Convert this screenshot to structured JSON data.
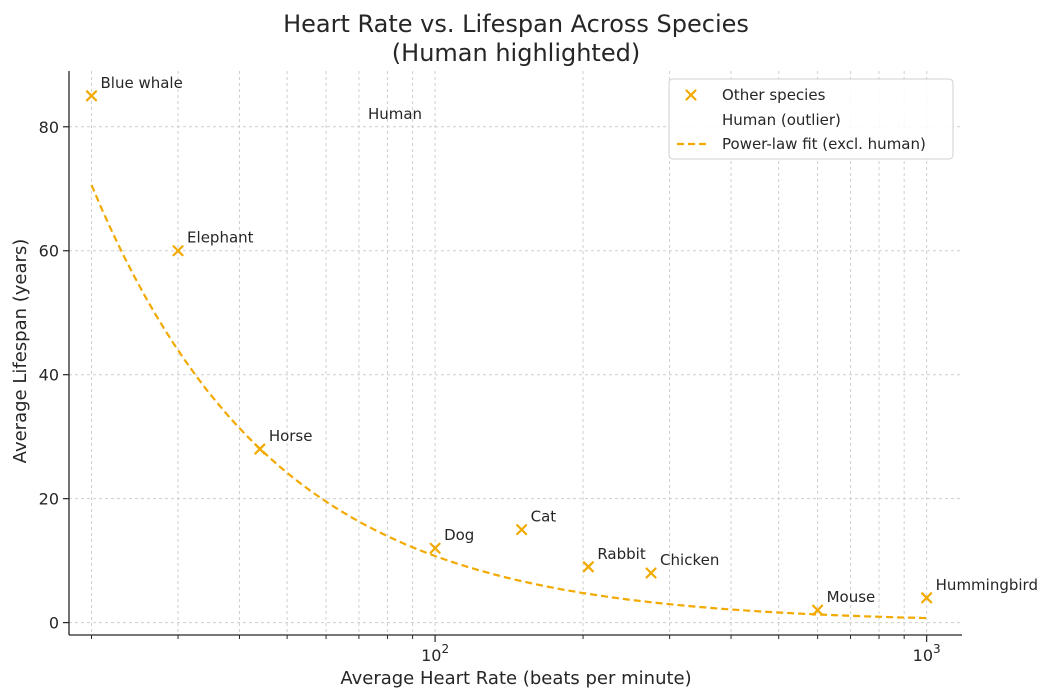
{
  "colors": {
    "accent": "#F2A900",
    "axis": "#262626",
    "grid": "#cfcfcf",
    "background": "#ffffff"
  },
  "chart_data": {
    "type": "scatter",
    "title_lines": [
      "Heart Rate vs. Lifespan Across Species",
      "(Human highlighted)"
    ],
    "xlabel": "Average Heart Rate (beats per minute)",
    "ylabel": "Average Lifespan (years)",
    "xscale": "log",
    "xlim": [
      18,
      1180
    ],
    "ylim": [
      -2,
      89
    ],
    "x_major_ticks": [
      {
        "value": 100,
        "base": "10",
        "exp": "2"
      },
      {
        "value": 1000,
        "base": "10",
        "exp": "3"
      }
    ],
    "x_minor_ticks": [
      20,
      30,
      40,
      50,
      60,
      70,
      80,
      90,
      200,
      300,
      400,
      500,
      600,
      700,
      800,
      900
    ],
    "y_ticks": [
      0,
      20,
      40,
      60,
      80
    ],
    "grid": true,
    "series": [
      {
        "name": "Other species",
        "marker": "x",
        "points": [
          {
            "label": "Blue whale",
            "x": 20,
            "y": 85
          },
          {
            "label": "Elephant",
            "x": 30,
            "y": 60
          },
          {
            "label": "Horse",
            "x": 44,
            "y": 28
          },
          {
            "label": "Dog",
            "x": 100,
            "y": 12
          },
          {
            "label": "Cat",
            "x": 150,
            "y": 15
          },
          {
            "label": "Rabbit",
            "x": 205,
            "y": 9
          },
          {
            "label": "Chicken",
            "x": 275,
            "y": 8
          },
          {
            "label": "Mouse",
            "x": 600,
            "y": 2
          },
          {
            "label": "Hummingbird",
            "x": 1000,
            "y": 4
          }
        ]
      },
      {
        "name": "Human (outlier)",
        "marker": "none",
        "points": [
          {
            "label": "Human",
            "x": 70,
            "y": 80
          }
        ]
      },
      {
        "name": "Power-law fit (excl. human)",
        "line": "dashed",
        "fit": {
          "a": 2350,
          "b": -1.17,
          "x_from": 20,
          "x_to": 1000
        }
      }
    ],
    "legend": {
      "position": "top-right",
      "entries": [
        "Other species",
        "Human (outlier)",
        "Power-law fit (excl. human)"
      ]
    }
  }
}
